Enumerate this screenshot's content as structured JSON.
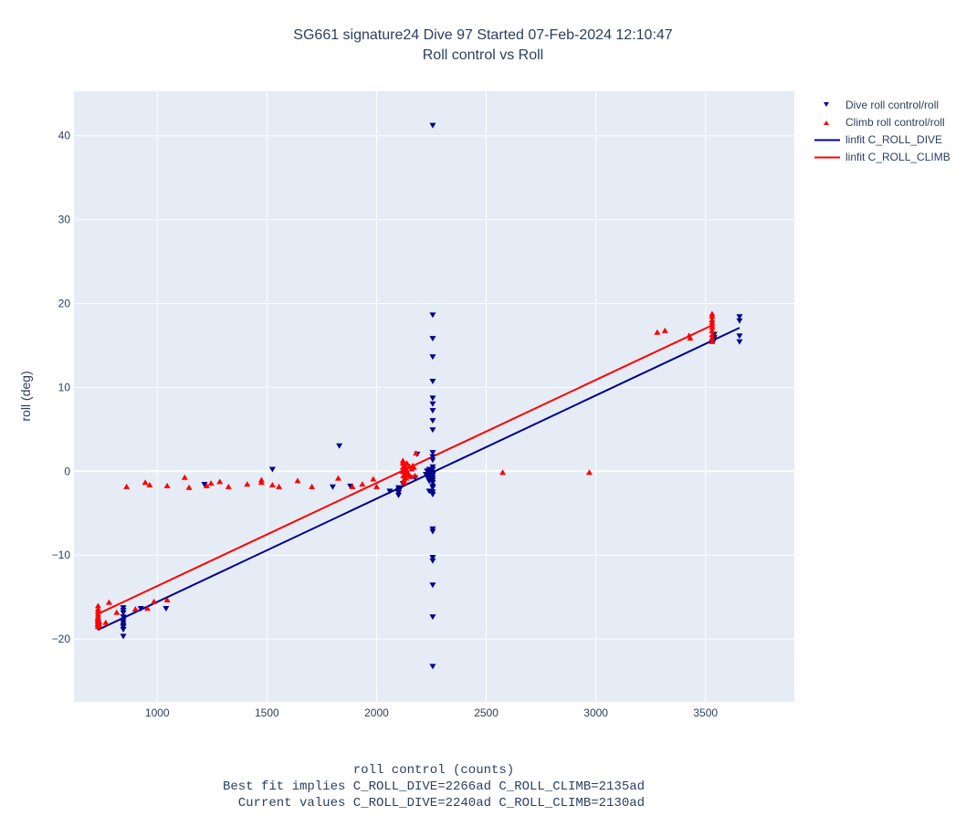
{
  "title": {
    "line1": "SG661 signature24 Dive 97 Started 07-Feb-2024 12:10:47",
    "line2": "Roll control vs Roll"
  },
  "colors": {
    "dive": "#00008b",
    "climb": "#ff0000",
    "plot_bg": "#e5ecf6",
    "grid": "#ffffff",
    "text": "#2a3f5f"
  },
  "chart_data": {
    "type": "scatter",
    "title": "SG661 signature24 Dive 97 Started 07-Feb-2024 12:10:47 / Roll control vs Roll",
    "xlabel": "roll control (counts)",
    "ylabel": "roll (deg)",
    "xlabel_lines": [
      "roll control (counts)",
      "Best fit implies C_ROLL_DIVE=2266ad C_ROLL_CLIMB=2135ad",
      "  Current values C_ROLL_DIVE=2240ad C_ROLL_CLIMB=2130ad"
    ],
    "xlim": [
      620,
      3905
    ],
    "ylim": [
      -27.5,
      45.3
    ],
    "xticks": [
      1000,
      1500,
      2000,
      2500,
      3000,
      3500
    ],
    "yticks": [
      -20,
      -10,
      0,
      10,
      20,
      30,
      40
    ],
    "ytick_labels": [
      "−20",
      "−10",
      "0",
      "10",
      "20",
      "30",
      "40"
    ],
    "grid": true,
    "legend_position": "top-right, outside plot",
    "series": [
      {
        "name": "Dive roll control/roll",
        "kind": "marker",
        "marker": "triangle-down",
        "color": "#00008b",
        "x": [
          2256,
          2256,
          2256,
          2256,
          2256,
          2256,
          2256,
          2256,
          2256,
          2256,
          2256,
          2256,
          2256,
          2256,
          2256,
          2256,
          2256,
          2256,
          2256,
          2256,
          2256,
          2256,
          2256,
          2256,
          2256,
          2256,
          2256,
          2256,
          2256,
          2256,
          2225,
          2230,
          2235,
          2240,
          2245,
          2250,
          2235,
          2240,
          2245,
          2250,
          2230,
          2240,
          2245,
          2250,
          2240,
          2260,
          2250,
          2185,
          2100,
          2100,
          2100,
          2100,
          2105,
          2060,
          2120,
          2175,
          1800,
          1880,
          1215,
          1525,
          1830,
          845,
          845,
          845,
          845,
          845,
          845,
          845,
          845,
          845,
          845,
          925,
          1040,
          730,
          730,
          730,
          3655,
          3655,
          3655,
          3655,
          3540,
          3540,
          3540
        ],
        "y": [
          41.2,
          18.6,
          15.8,
          13.6,
          10.7,
          8.7,
          8.0,
          7.2,
          6.0,
          4.9,
          2.2,
          1.3,
          0.5,
          -0.5,
          -1.1,
          -1.8,
          -2.0,
          -6.9,
          -7.2,
          -10.3,
          -10.7,
          -13.6,
          -17.4,
          -23.3,
          -2.5,
          -2.8,
          1.7,
          0.2,
          -0.8,
          -1.4,
          -0.4,
          -0.6,
          -0.8,
          -1.0,
          -0.3,
          -0.5,
          -0.9,
          -1.2,
          -1.0,
          -0.7,
          0.0,
          0.2,
          -0.2,
          -0.6,
          -2.4,
          -0.2,
          0.1,
          2.0,
          -2.0,
          -2.3,
          -2.6,
          -2.9,
          -2.2,
          -2.4,
          -1.5,
          -0.8,
          -1.9,
          -1.8,
          -1.6,
          0.2,
          3.0,
          -16.3,
          -16.6,
          -16.9,
          -17.4,
          -17.8,
          -18.1,
          -18.4,
          -18.6,
          -18.9,
          -19.7,
          -16.4,
          -16.4,
          -18.7,
          -18.3,
          -18.0,
          18.4,
          17.9,
          16.1,
          15.4,
          15.6,
          15.9,
          16.3
        ]
      },
      {
        "name": "Climb roll control/roll",
        "kind": "marker",
        "marker": "triangle-up",
        "color": "#ff0000",
        "x": [
          730,
          730,
          730,
          730,
          730,
          730,
          730,
          730,
          730,
          730,
          735,
          735,
          765,
          780,
          815,
          860,
          900,
          945,
          955,
          965,
          985,
          1045,
          1045,
          1125,
          1145,
          1225,
          1245,
          1285,
          1325,
          1410,
          1475,
          1475,
          1525,
          1555,
          1640,
          1705,
          1825,
          1890,
          1935,
          1985,
          2000,
          2120,
          2120,
          2120,
          2120,
          2122,
          2124,
          2126,
          2128,
          2130,
          2130,
          2132,
          2135,
          2138,
          2140,
          2145,
          2150,
          2155,
          2160,
          2165,
          2170,
          2175,
          2180,
          2575,
          2970,
          3280,
          3315,
          3425,
          3430,
          3530,
          3530,
          3530,
          3530,
          3530,
          3530,
          3530,
          3530,
          3530,
          3530
        ],
        "y": [
          -16.0,
          -16.4,
          -16.7,
          -17.0,
          -17.3,
          -17.6,
          -17.9,
          -18.1,
          -18.3,
          -18.5,
          -18.2,
          -17.9,
          -18.0,
          -15.6,
          -16.8,
          -1.8,
          -16.4,
          -1.3,
          -16.3,
          -1.6,
          -15.5,
          -1.7,
          -15.3,
          -0.7,
          -1.9,
          -1.7,
          -1.4,
          -1.2,
          -1.8,
          -1.5,
          -1.3,
          -1.0,
          -1.6,
          -1.8,
          -1.1,
          -1.8,
          -0.8,
          -1.8,
          -1.5,
          -0.9,
          -1.8,
          1.3,
          1.0,
          0.5,
          0.0,
          -0.5,
          -1.0,
          -1.3,
          0.8,
          0.2,
          -0.3,
          0.4,
          -0.8,
          1.0,
          0.0,
          -0.4,
          0.6,
          -0.6,
          0.3,
          0.7,
          0.5,
          -0.5,
          2.2,
          -0.1,
          -0.1,
          16.6,
          16.8,
          16.2,
          15.9,
          18.8,
          18.5,
          18.1,
          17.8,
          17.5,
          17.2,
          16.8,
          16.3,
          15.9,
          15.5
        ]
      },
      {
        "name": "linfit C_ROLL_DIVE",
        "kind": "line",
        "color": "#00008b",
        "x": [
          730,
          3655
        ],
        "y": [
          -18.9,
          17.1
        ]
      },
      {
        "name": "linfit C_ROLL_CLIMB",
        "kind": "line",
        "color": "#ff0000",
        "x": [
          730,
          3530
        ],
        "y": [
          -17.0,
          17.4
        ]
      }
    ]
  }
}
